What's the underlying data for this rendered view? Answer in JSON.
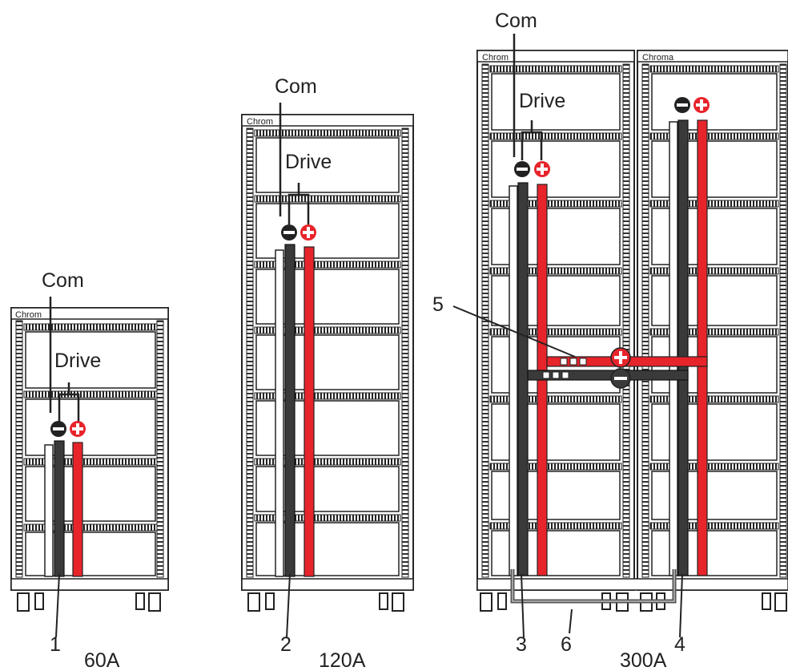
{
  "brand": "Chroma",
  "brand_cut": "Chrom",
  "terminals": {
    "com": "Com",
    "drive": "Drive"
  },
  "racks": [
    {
      "capacity": "60A",
      "callouts": [
        "1"
      ]
    },
    {
      "capacity": "120A",
      "callouts": [
        "2"
      ]
    },
    {
      "capacity": "300A",
      "callouts": [
        "3",
        "4",
        "5",
        "6"
      ]
    }
  ],
  "colors": {
    "negative_bus": "#3a3a3a",
    "positive_bus": "#e8242b",
    "frame": "#222222"
  },
  "icons": {
    "negative": "minus-circle-icon",
    "positive": "plus-circle-icon",
    "caster": "caster-wheel-icon"
  }
}
